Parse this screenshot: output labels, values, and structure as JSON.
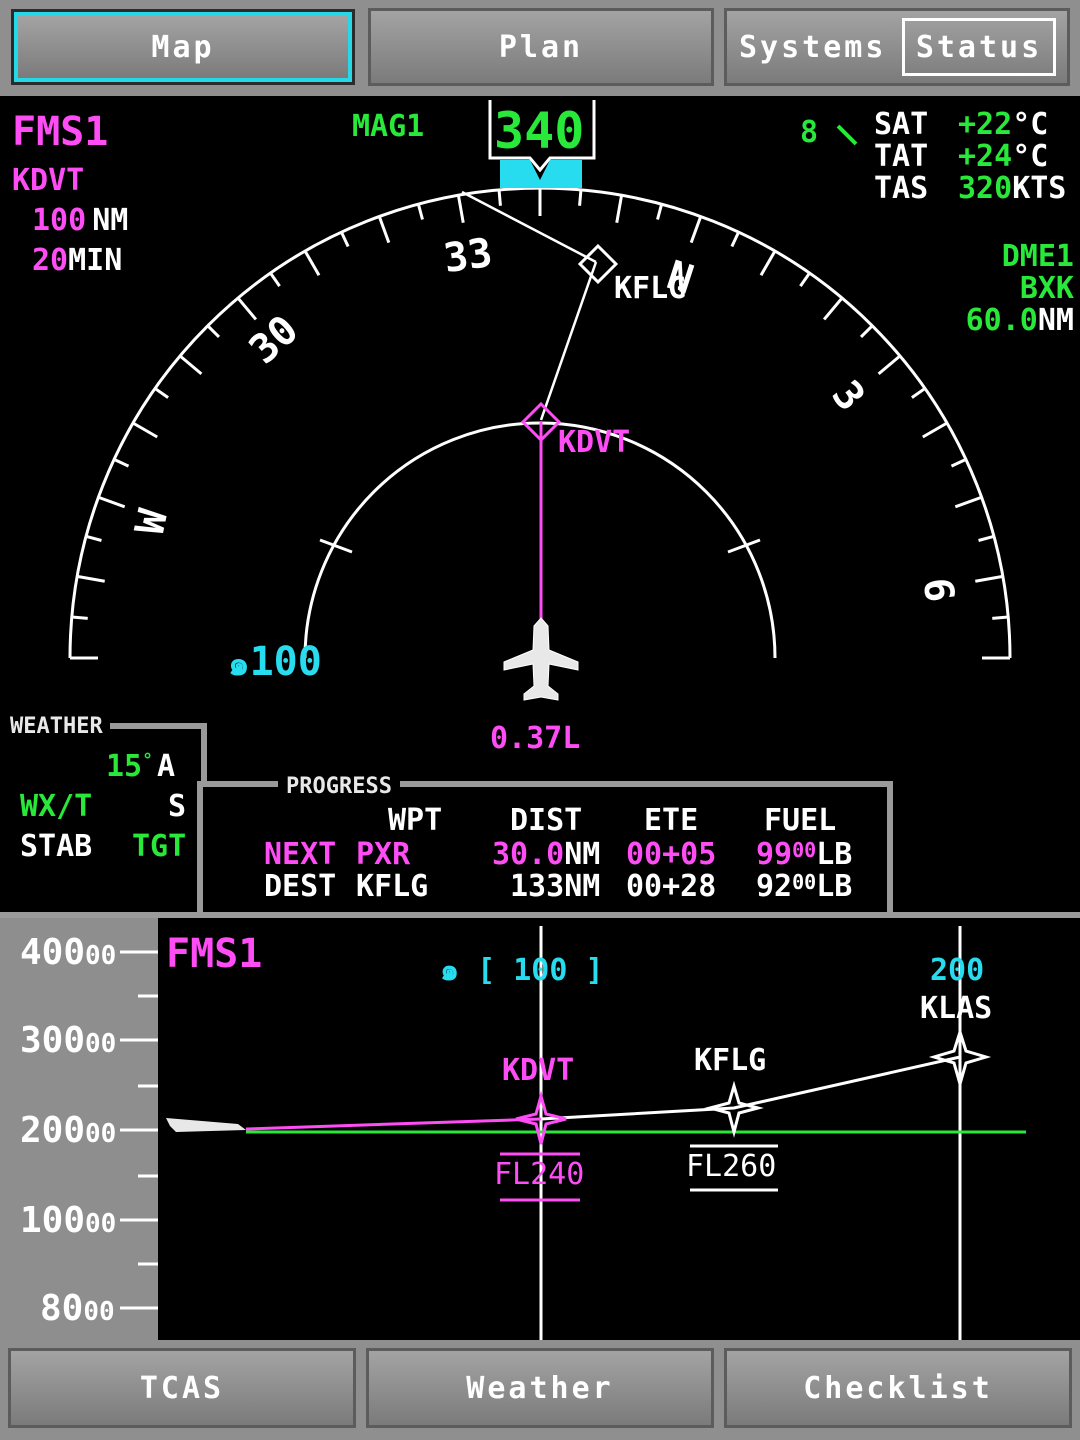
{
  "top_tabs": {
    "map": "Map",
    "plan": "Plan",
    "systems": "Systems",
    "status": "Status"
  },
  "bottom_tabs": {
    "tcas": "TCAS",
    "weather": "Weather",
    "checklist": "Checklist"
  },
  "nav": {
    "fms": "FMS1",
    "dest": "KDVT",
    "range_value": "100",
    "range_unit": "NM",
    "time_value": "20",
    "time_unit": "MIN",
    "mag": "MAG1",
    "heading": "340",
    "wind_speed": "8",
    "sat_label": "SAT",
    "sat_value": "+22",
    "sat_unit": "°C",
    "tat_label": "TAT",
    "tat_value": "+24",
    "tat_unit": "°C",
    "tas_label": "TAS",
    "tas_value": "320",
    "tas_unit": "KTS",
    "dme_label": "DME1",
    "dme_station": "BXK",
    "dme_value": "60.0",
    "dme_unit": "NM",
    "compass_labels": [
      "33",
      "N",
      "3",
      "6",
      "W",
      "30"
    ],
    "waypoint_next": "KFLG",
    "waypoint_active": "KDVT",
    "arc_range": "100",
    "xtk": "0.37L"
  },
  "weather": {
    "title": "WEATHER",
    "tilt": "15",
    "tilt_mode": "A",
    "mode": "WX/T",
    "mode_suffix": "S",
    "stab": "STAB",
    "tgt": "TGT"
  },
  "progress": {
    "title": "PROGRESS",
    "headers": [
      "WPT",
      "DIST",
      "ETE",
      "FUEL"
    ],
    "rows": [
      {
        "label": "NEXT",
        "wpt": "PXR",
        "dist": "30.0",
        "dist_unit": "NM",
        "ete": "00+05",
        "fuel": "99",
        "fuel_sub": "00",
        "fuel_unit": "LB"
      },
      {
        "label": "DEST",
        "wpt": "KFLG",
        "dist": "133",
        "dist_unit": "NM",
        "ete": "00+28",
        "fuel": "92",
        "fuel_sub": "00",
        "fuel_unit": "LB"
      }
    ]
  },
  "vertical_profile": {
    "fms": "FMS1",
    "range_label": "[ 100 ]",
    "altitudes": [
      {
        "main": "400",
        "sub": "00"
      },
      {
        "main": "300",
        "sub": "00"
      },
      {
        "main": "200",
        "sub": "00"
      },
      {
        "main": "100",
        "sub": "00"
      },
      {
        "main": "80",
        "sub": "00"
      }
    ],
    "waypoints": [
      {
        "name": "KDVT",
        "constraint": "FL240"
      },
      {
        "name": "KFLG",
        "constraint": "FL260"
      },
      {
        "name": "KLAS",
        "speed": "200"
      }
    ]
  },
  "colors": {
    "magenta": "#ff4df5",
    "green": "#28e83a",
    "cyan": "#28dcf0",
    "white": "#ffffff"
  }
}
